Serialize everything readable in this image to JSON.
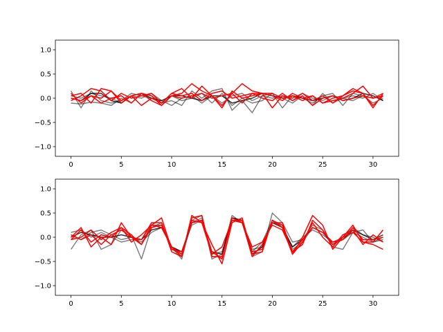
{
  "chart_data": [
    {
      "type": "line",
      "xlim": [
        -1.55,
        32.55
      ],
      "ylim": [
        -1.2,
        1.2
      ],
      "xticks": [
        0,
        5,
        10,
        15,
        20,
        25,
        30
      ],
      "xtick_labels": [
        "0",
        "5",
        "10",
        "15",
        "20",
        "25",
        "30"
      ],
      "yticks": [
        1.0,
        0.5,
        0.0,
        -0.5,
        -1.0
      ],
      "ytick_labels": [
        "1.0",
        "0.5",
        "0.0",
        "−0.5",
        "−1.0"
      ],
      "grid": false,
      "x": [
        0,
        1,
        2,
        3,
        4,
        5,
        6,
        7,
        8,
        9,
        10,
        11,
        12,
        13,
        14,
        15,
        16,
        17,
        18,
        19,
        20,
        21,
        22,
        23,
        24,
        25,
        26,
        27,
        28,
        29,
        30,
        31
      ],
      "series": [
        {
          "color": "#000000",
          "alpha": 0.5,
          "values": [
            0.15,
            -0.2,
            0.15,
            -0.05,
            -0.1,
            -0.05,
            0.1,
            0.05,
            0.0,
            -0.1,
            -0.05,
            -0.15,
            0.15,
            0.0,
            0.15,
            0.2,
            -0.25,
            -0.05,
            -0.3,
            0.05,
            0.1,
            -0.2,
            0.05,
            0.0,
            -0.1,
            0.05,
            0.1,
            -0.15,
            0.1,
            0.05,
            -0.1,
            0.0
          ]
        },
        {
          "color": "#000000",
          "alpha": 0.5,
          "values": [
            -0.1,
            -0.12,
            -0.08,
            -0.1,
            -0.15,
            0.0,
            -0.1,
            0.1,
            0.05,
            -0.1,
            0.05,
            -0.05,
            0.0,
            0.1,
            -0.1,
            0.1,
            -0.15,
            0.0,
            -0.1,
            -0.05,
            0.1,
            0.0,
            -0.1,
            0.05,
            -0.15,
            0.1,
            -0.1,
            0.0,
            0.05,
            0.0,
            0.1,
            -0.05
          ]
        },
        {
          "color": "#000000",
          "alpha": 0.5,
          "values": [
            0.05,
            0.0,
            0.1,
            0.05,
            0.0,
            -0.1,
            0.05,
            0.0,
            0.1,
            -0.05,
            -0.15,
            0.0,
            0.05,
            -0.1,
            0.05,
            -0.1,
            0.05,
            0.1,
            -0.05,
            0.05,
            0.0,
            0.05,
            -0.05,
            0.1,
            0.0,
            -0.05,
            0.05,
            0.0,
            -0.05,
            0.05,
            0.0,
            0.05
          ]
        },
        {
          "color": "#000000",
          "alpha": 0.8,
          "values": [
            0.0,
            -0.05,
            0.1,
            0.1,
            -0.05,
            -0.1,
            0.05,
            0.1,
            0.0,
            -0.05,
            0.05,
            0.05,
            0.0,
            -0.05,
            0.05,
            0.05,
            -0.1,
            -0.05,
            0.0,
            0.1,
            0.05,
            0.0,
            0.05,
            0.0,
            -0.05,
            0.0,
            0.05,
            -0.05,
            0.0,
            0.1,
            0.05,
            -0.05
          ]
        },
        {
          "color": "#ff0000",
          "alpha": 1.0,
          "values": [
            0.05,
            0.1,
            -0.1,
            0.2,
            0.15,
            -0.1,
            0.05,
            0.1,
            0.05,
            -0.15,
            0.05,
            0.1,
            0.3,
            0.15,
            0.05,
            -0.15,
            0.1,
            0.3,
            0.15,
            0.1,
            0.05,
            -0.05,
            0.1,
            0.0,
            0.05,
            -0.1,
            0.0,
            0.05,
            0.2,
            0.1,
            -0.2,
            0.1
          ]
        },
        {
          "color": "#ff0000",
          "alpha": 1.0,
          "values": [
            -0.05,
            0.05,
            0.2,
            0.15,
            -0.05,
            0.1,
            0.0,
            0.05,
            0.1,
            -0.1,
            0.1,
            0.05,
            0.1,
            -0.05,
            0.1,
            0.15,
            0.0,
            0.05,
            0.1,
            0.1,
            -0.2,
            0.05,
            0.0,
            0.1,
            -0.05,
            0.05,
            -0.1,
            0.05,
            0.15,
            0.1,
            -0.15,
            0.05
          ]
        },
        {
          "color": "#ff0000",
          "alpha": 1.0,
          "values": [
            0.0,
            -0.05,
            0.05,
            0.0,
            0.15,
            -0.05,
            0.05,
            -0.15,
            0.0,
            -0.1,
            0.1,
            0.2,
            0.0,
            0.25,
            0.05,
            -0.2,
            0.15,
            0.0,
            0.05,
            0.1,
            0.1,
            0.0,
            0.05,
            -0.05,
            0.05,
            -0.1,
            -0.05,
            0.0,
            0.1,
            0.25,
            0.0,
            0.1
          ]
        },
        {
          "color": "#ff0000",
          "alpha": 1.0,
          "values": [
            0.1,
            -0.1,
            0.05,
            -0.1,
            0.0,
            0.05,
            -0.1,
            0.1,
            -0.05,
            -0.15,
            0.05,
            0.0,
            0.05,
            0.1,
            0.0,
            0.05,
            0.1,
            -0.1,
            0.1,
            0.0,
            -0.05,
            0.1,
            -0.05,
            0.05,
            -0.15,
            0.0,
            0.05,
            -0.05,
            0.0,
            0.05,
            0.0,
            0.05
          ]
        }
      ]
    },
    {
      "type": "line",
      "xlim": [
        -1.55,
        32.55
      ],
      "ylim": [
        -1.2,
        1.2
      ],
      "xticks": [
        0,
        5,
        10,
        15,
        20,
        25,
        30
      ],
      "xtick_labels": [
        "0",
        "5",
        "10",
        "15",
        "20",
        "25",
        "30"
      ],
      "yticks": [
        1.0,
        0.5,
        0.0,
        -0.5,
        -1.0
      ],
      "ytick_labels": [
        "1.0",
        "0.5",
        "0.0",
        "−0.5",
        "−1.0"
      ],
      "grid": false,
      "x": [
        0,
        1,
        2,
        3,
        4,
        5,
        6,
        7,
        8,
        9,
        10,
        11,
        12,
        13,
        14,
        15,
        16,
        17,
        18,
        19,
        20,
        21,
        22,
        23,
        24,
        25,
        26,
        27,
        28,
        29,
        30,
        31
      ],
      "series": [
        {
          "color": "#000000",
          "alpha": 0.5,
          "values": [
            -0.25,
            0.05,
            0.15,
            -0.25,
            -0.15,
            0.15,
            0.05,
            -0.45,
            0.2,
            0.3,
            -0.2,
            -0.45,
            0.35,
            0.45,
            -0.45,
            -0.35,
            0.45,
            0.3,
            -0.4,
            -0.3,
            0.5,
            0.3,
            -0.1,
            -0.05,
            0.25,
            0.15,
            -0.2,
            -0.25,
            0.1,
            0.15,
            -0.1,
            -0.05
          ]
        },
        {
          "color": "#000000",
          "alpha": 0.5,
          "values": [
            0.1,
            0.15,
            0.0,
            0.1,
            0.0,
            -0.1,
            -0.05,
            -0.05,
            0.25,
            0.25,
            -0.25,
            -0.35,
            0.3,
            0.4,
            -0.4,
            -0.4,
            0.4,
            0.35,
            -0.3,
            -0.1,
            0.35,
            0.2,
            -0.2,
            0.0,
            0.15,
            0.05,
            -0.1,
            0.0,
            0.2,
            0.05,
            0.0,
            -0.1
          ]
        },
        {
          "color": "#000000",
          "alpha": 0.5,
          "values": [
            0.05,
            -0.05,
            0.1,
            0.15,
            0.05,
            -0.05,
            0.0,
            -0.1,
            0.1,
            0.2,
            -0.2,
            -0.3,
            0.25,
            0.35,
            -0.35,
            -0.3,
            0.35,
            0.3,
            -0.25,
            -0.2,
            0.3,
            0.25,
            -0.25,
            -0.1,
            0.2,
            0.1,
            -0.15,
            -0.05,
            0.1,
            0.0,
            -0.1,
            0.0
          ]
        },
        {
          "color": "#000000",
          "alpha": 0.8,
          "values": [
            0.0,
            0.1,
            0.05,
            0.0,
            0.0,
            0.05,
            0.0,
            -0.05,
            0.15,
            0.2,
            -0.2,
            -0.3,
            0.3,
            0.35,
            -0.3,
            -0.35,
            0.4,
            0.35,
            -0.35,
            -0.2,
            0.3,
            0.2,
            -0.2,
            -0.05,
            0.2,
            0.1,
            -0.1,
            -0.05,
            0.15,
            0.05,
            -0.05,
            0.05
          ]
        },
        {
          "color": "#ff0000",
          "alpha": 1.0,
          "values": [
            0.0,
            0.2,
            -0.2,
            0.0,
            -0.15,
            0.3,
            0.0,
            -0.05,
            0.3,
            0.3,
            -0.3,
            -0.4,
            0.45,
            0.3,
            -0.15,
            -0.55,
            0.3,
            0.4,
            -0.35,
            -0.3,
            0.35,
            0.2,
            -0.35,
            0.0,
            0.45,
            0.25,
            -0.25,
            0.0,
            0.25,
            -0.1,
            -0.1,
            0.15
          ]
        },
        {
          "color": "#ff0000",
          "alpha": 1.0,
          "values": [
            -0.05,
            0.15,
            -0.1,
            0.05,
            0.0,
            0.2,
            -0.1,
            0.05,
            0.25,
            0.2,
            -0.2,
            -0.4,
            0.4,
            0.45,
            -0.4,
            -0.4,
            0.35,
            0.35,
            -0.4,
            -0.15,
            0.3,
            0.3,
            -0.35,
            -0.1,
            0.3,
            0.0,
            -0.2,
            0.05,
            0.15,
            -0.15,
            0.05,
            -0.1
          ]
        },
        {
          "color": "#ff0000",
          "alpha": 1.0,
          "values": [
            0.05,
            -0.05,
            0.05,
            -0.15,
            0.05,
            0.15,
            0.0,
            -0.15,
            0.2,
            0.25,
            -0.2,
            -0.35,
            0.35,
            0.3,
            -0.35,
            -0.2,
            0.35,
            0.3,
            -0.2,
            -0.1,
            0.25,
            0.15,
            -0.3,
            -0.05,
            0.2,
            0.1,
            -0.1,
            -0.05,
            0.2,
            -0.05,
            -0.05,
            0.0
          ]
        },
        {
          "color": "#ff0000",
          "alpha": 1.0,
          "values": [
            -0.05,
            0.0,
            0.15,
            -0.05,
            0.1,
            0.2,
            0.05,
            -0.15,
            0.25,
            0.4,
            -0.25,
            -0.3,
            0.3,
            0.35,
            -0.3,
            -0.45,
            0.4,
            0.3,
            -0.3,
            -0.25,
            0.35,
            0.25,
            -0.3,
            -0.15,
            0.35,
            0.15,
            -0.15,
            0.0,
            0.1,
            -0.1,
            -0.15,
            -0.25
          ]
        }
      ]
    }
  ]
}
